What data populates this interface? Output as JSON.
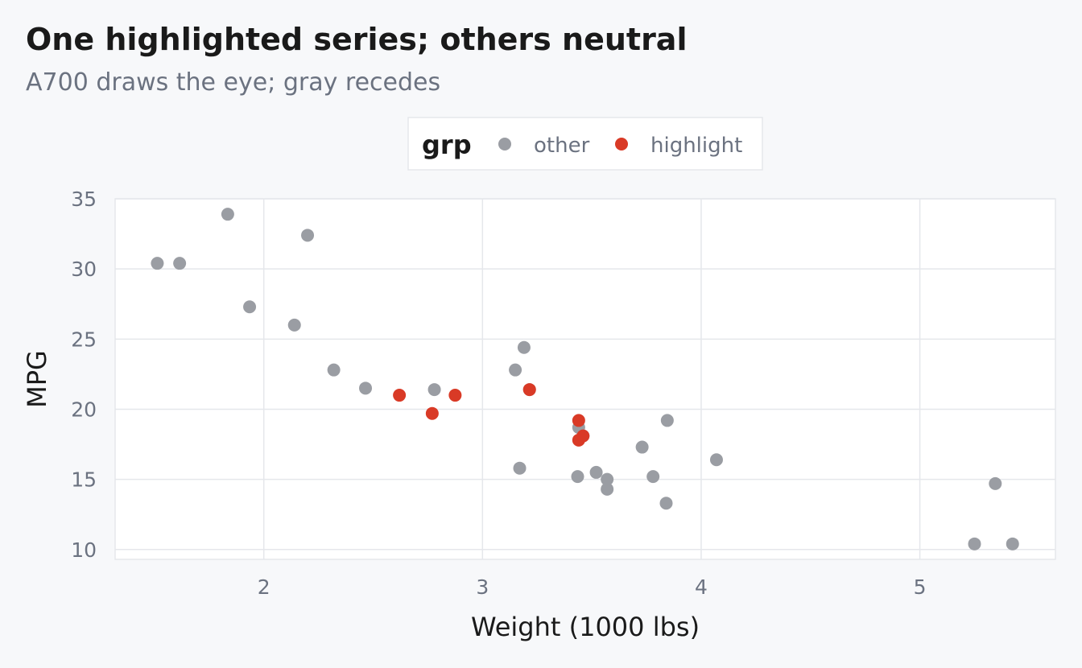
{
  "chart_data": {
    "type": "scatter",
    "title": "One highlighted series; others neutral",
    "subtitle": "A700 draws the eye; gray recedes",
    "xlabel": "Weight (1000 lbs)",
    "ylabel": "MPG",
    "xlim": [
      1.32,
      5.62
    ],
    "ylim": [
      9.3,
      35.0
    ],
    "xticks": [
      2,
      3,
      4,
      5
    ],
    "yticks": [
      10,
      15,
      20,
      25,
      30,
      35
    ],
    "grid": true,
    "legend": {
      "title": "grp",
      "position": "top",
      "entries": [
        "other",
        "highlight"
      ]
    },
    "colors": {
      "other": "#9a9da3",
      "highlight": "#d93a26"
    },
    "series": [
      {
        "name": "other",
        "points": [
          {
            "x": 2.32,
            "y": 22.8
          },
          {
            "x": 3.215,
            "y": 21.4
          },
          {
            "x": 3.44,
            "y": 18.7
          },
          {
            "x": 3.46,
            "y": 18.1
          },
          {
            "x": 3.57,
            "y": 14.3
          },
          {
            "x": 3.19,
            "y": 24.4
          },
          {
            "x": 3.15,
            "y": 22.8
          },
          {
            "x": 4.07,
            "y": 16.4
          },
          {
            "x": 3.73,
            "y": 17.3
          },
          {
            "x": 3.78,
            "y": 15.2
          },
          {
            "x": 5.25,
            "y": 10.4
          },
          {
            "x": 5.424,
            "y": 10.4
          },
          {
            "x": 5.345,
            "y": 14.7
          },
          {
            "x": 2.2,
            "y": 32.4
          },
          {
            "x": 1.615,
            "y": 30.4
          },
          {
            "x": 1.835,
            "y": 33.9
          },
          {
            "x": 2.465,
            "y": 21.5
          },
          {
            "x": 3.52,
            "y": 15.5
          },
          {
            "x": 3.435,
            "y": 15.2
          },
          {
            "x": 3.84,
            "y": 13.3
          },
          {
            "x": 3.845,
            "y": 19.2
          },
          {
            "x": 1.935,
            "y": 27.3
          },
          {
            "x": 2.14,
            "y": 26.0
          },
          {
            "x": 1.513,
            "y": 30.4
          },
          {
            "x": 3.17,
            "y": 15.8
          },
          {
            "x": 2.78,
            "y": 21.4
          },
          {
            "x": 3.57,
            "y": 15.0
          }
        ]
      },
      {
        "name": "highlight",
        "points": [
          {
            "x": 2.62,
            "y": 21.0
          },
          {
            "x": 2.875,
            "y": 21.0
          },
          {
            "x": 2.77,
            "y": 19.7
          },
          {
            "x": 3.215,
            "y": 21.4
          },
          {
            "x": 3.44,
            "y": 19.2
          },
          {
            "x": 3.46,
            "y": 18.1
          },
          {
            "x": 3.44,
            "y": 17.8
          }
        ]
      }
    ]
  }
}
